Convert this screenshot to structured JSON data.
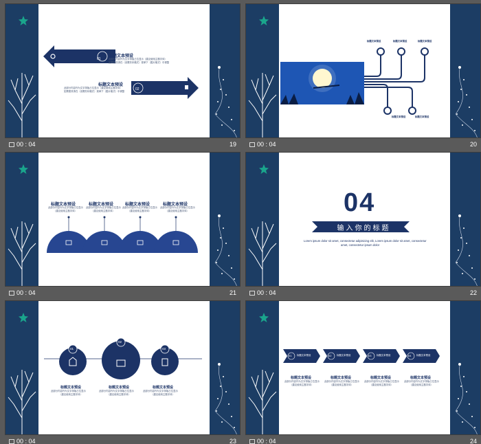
{
  "slides": [
    {
      "number": "19",
      "time": "00 : 04",
      "items": [
        {
          "num": "01",
          "title": "标题文本预设",
          "desc": [
            "此部分内容作为文字排版占位显示（建议使用主题字体）",
            "如需更改请在（设置形状格式）菜单下（图片格式）中调整"
          ]
        },
        {
          "num": "02",
          "title": "标题文本预设",
          "desc": [
            "此部分内容作为文字排版占位显示（建议使用主题字体）",
            "如需更改请在（设置形状格式）菜单下（图片格式）中调整"
          ]
        }
      ]
    },
    {
      "number": "20",
      "time": "00 : 04",
      "labels": [
        "标题文本预设",
        "标题文本预设",
        "标题文本预设",
        "标题文本预设",
        "标题文本预设"
      ]
    },
    {
      "number": "21",
      "time": "00 : 04",
      "items": [
        {
          "title": "标题文本预设",
          "desc": [
            "此部分内容作为文字排版占位显示",
            "（建议使用主题字体）"
          ]
        },
        {
          "title": "标题文本预设",
          "desc": [
            "此部分内容作为文字排版占位显示",
            "（建议使用主题字体）"
          ]
        },
        {
          "title": "标题文本预设",
          "desc": [
            "此部分内容作为文字排版占位显示",
            "（建议使用主题字体）"
          ]
        },
        {
          "title": "标题文本预设",
          "desc": [
            "此部分内容作为文字排版占位显示",
            "（建议使用主题字体）"
          ]
        }
      ]
    },
    {
      "number": "22",
      "time": "00 : 04",
      "section_number": "04",
      "heading": "输入你的标题",
      "lorem": [
        "Lorem ipsum dolor sit amet, consectetur adipisicing elit, Lorem ipsum dolor sit amet, consectetur",
        "amet, consectetur ipsum dolor"
      ]
    },
    {
      "number": "23",
      "time": "00 : 04",
      "items": [
        {
          "num": "01",
          "title": "标题文本预设",
          "desc": [
            "此部分内容作为文字排版占位显示",
            "（建议使用主题字体）"
          ]
        },
        {
          "num": "02",
          "title": "标题文本预设",
          "desc": [
            "此部分内容作为文字排版占位显示",
            "（建议使用主题字体）"
          ]
        },
        {
          "num": "03",
          "title": "标题文本预设",
          "desc": [
            "此部分内容作为文字排版占位显示",
            "（建议使用主题字体）"
          ]
        }
      ]
    },
    {
      "number": "24",
      "time": "00 : 04",
      "items": [
        {
          "num": "01",
          "label": "标题文本预设",
          "title": "标题文本预设",
          "desc": [
            "此部分内容作为文字排版占位显示",
            "（建议使用主题字体）"
          ]
        },
        {
          "num": "02",
          "label": "标题文本预设",
          "title": "标题文本预设",
          "desc": [
            "此部分内容作为文字排版占位显示",
            "（建议使用主题字体）"
          ]
        },
        {
          "num": "03",
          "label": "标题文本预设",
          "title": "标题文本预设",
          "desc": [
            "此部分内容作为文字排版占位显示",
            "（建议使用主题字体）"
          ]
        },
        {
          "num": "04",
          "label": "标题文本预设",
          "title": "标题文本预设",
          "desc": [
            "此部分内容作为文字排版占位显示",
            "（建议使用主题字体）"
          ]
        }
      ]
    }
  ],
  "colors": {
    "navy": "#1c3366",
    "bar": "#1c3d64",
    "star": "#1aa58c",
    "background": "#5a5a5a"
  }
}
